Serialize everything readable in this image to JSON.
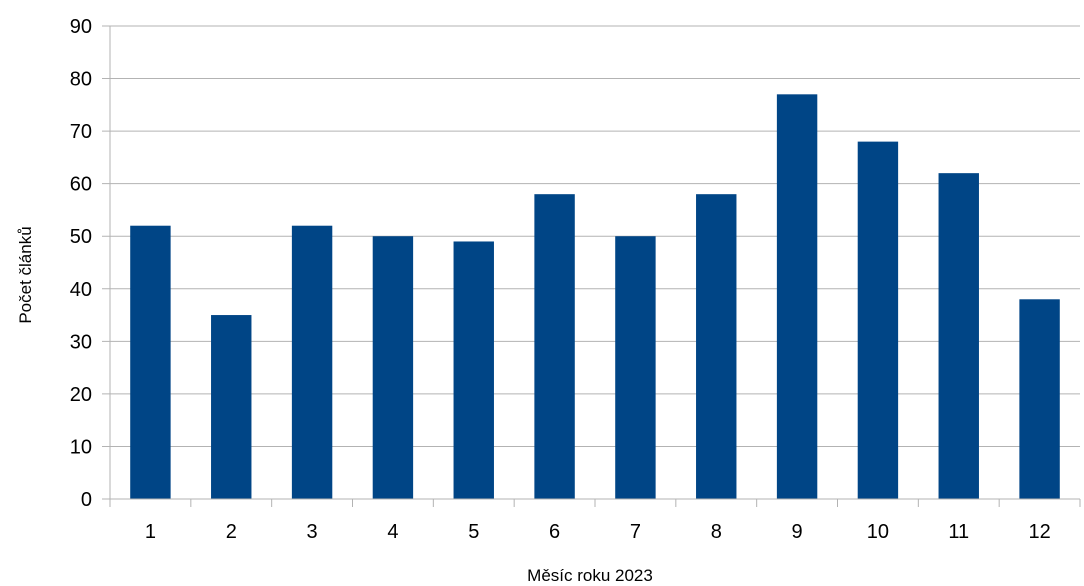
{
  "chart_data": {
    "type": "bar",
    "title": "",
    "xlabel": "Měsíc roku 2023",
    "ylabel": "Počet článků",
    "categories": [
      "1",
      "2",
      "3",
      "4",
      "5",
      "6",
      "7",
      "8",
      "9",
      "10",
      "11",
      "12"
    ],
    "values": [
      52,
      35,
      52,
      50,
      49,
      58,
      50,
      58,
      77,
      68,
      62,
      38
    ],
    "ylim": [
      0,
      90
    ],
    "yticks": [
      0,
      10,
      20,
      30,
      40,
      50,
      60,
      70,
      80,
      90
    ],
    "grid": true,
    "legend": "none",
    "bar_color": "#004586"
  }
}
